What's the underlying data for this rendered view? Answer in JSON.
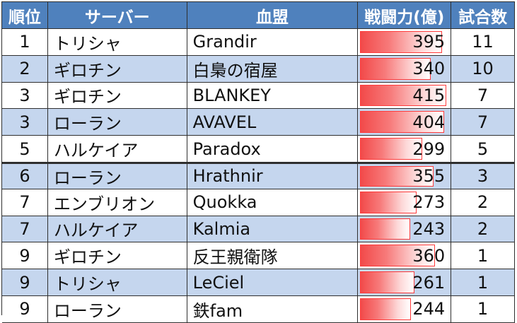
{
  "headers": {
    "rank": "順位",
    "server": "サーバー",
    "guild": "血盟",
    "power": "戦闘力(億)",
    "matches": "試合数"
  },
  "power_scale_max": 415,
  "bar_color": "#f24a4a",
  "header_color": "#4f81bd",
  "stripe_color": "#c5d6ee",
  "rows": [
    {
      "rank": "1",
      "server": "トリシャ",
      "guild": "Grandir",
      "power": 395,
      "matches": "11"
    },
    {
      "rank": "2",
      "server": "ギロチン",
      "guild": "白梟の宿屋",
      "power": 340,
      "matches": "10"
    },
    {
      "rank": "3",
      "server": "ギロチン",
      "guild": "BLANKEY",
      "power": 415,
      "matches": "7"
    },
    {
      "rank": "3",
      "server": "ローラン",
      "guild": "AVAVEL",
      "power": 404,
      "matches": "7"
    },
    {
      "rank": "5",
      "server": "ハルケイア",
      "guild": "Paradox",
      "power": 299,
      "matches": "5"
    },
    {
      "rank": "6",
      "server": "ローラン",
      "guild": "Hrathnir",
      "power": 355,
      "matches": "3"
    },
    {
      "rank": "7",
      "server": "エンブリオン",
      "guild": "Quokka",
      "power": 273,
      "matches": "2"
    },
    {
      "rank": "7",
      "server": "ハルケイア",
      "guild": "Kalmia",
      "power": 243,
      "matches": "2"
    },
    {
      "rank": "9",
      "server": "ギロチン",
      "guild": "反王親衛隊",
      "power": 360,
      "matches": "1"
    },
    {
      "rank": "9",
      "server": "トリシャ",
      "guild": "LeCiel",
      "power": 261,
      "matches": "1"
    },
    {
      "rank": "9",
      "server": "ローラン",
      "guild": "鉄fam",
      "power": 244,
      "matches": "1"
    }
  ]
}
